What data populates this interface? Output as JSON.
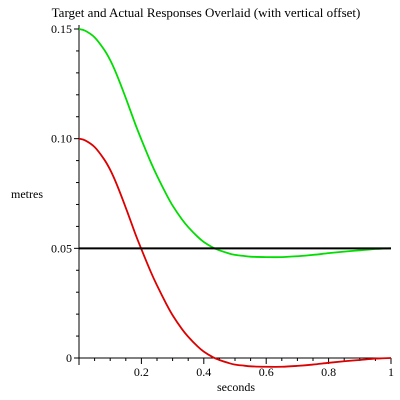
{
  "chart_data": {
    "type": "line",
    "title": "Target and Actual Responses Overlaid (with vertical offset)",
    "xlabel": "seconds",
    "ylabel": "metres",
    "xlim": [
      0,
      1
    ],
    "ylim": [
      0,
      0.15
    ],
    "grid": false,
    "xticks": [
      "0.2",
      "0.4",
      "0.6",
      "0.8",
      "1"
    ],
    "xtick_values": [
      0.2,
      0.4,
      0.6,
      0.8,
      1.0
    ],
    "yticks": [
      "0",
      "0.05",
      "0.10",
      "0.15"
    ],
    "ytick_values": [
      0,
      0.05,
      0.1,
      0.15
    ],
    "series": [
      {
        "color": "#00dd00",
        "x": [
          0,
          0.02,
          0.05,
          0.08,
          0.1,
          0.12,
          0.15,
          0.18,
          0.2,
          0.23,
          0.25,
          0.28,
          0.3,
          0.33,
          0.35,
          0.38,
          0.4,
          0.43,
          0.45,
          0.48,
          0.5,
          0.53,
          0.55,
          0.6,
          0.65,
          0.7,
          0.75,
          0.8,
          0.85,
          0.9,
          0.95,
          1.0
        ],
        "y": [
          0.15,
          0.1492,
          0.1462,
          0.1407,
          0.1358,
          0.1295,
          0.1185,
          0.1068,
          0.0996,
          0.0893,
          0.0831,
          0.0746,
          0.0695,
          0.0632,
          0.0597,
          0.0553,
          0.0529,
          0.0503,
          0.0491,
          0.0477,
          0.047,
          0.0465,
          0.0462,
          0.046,
          0.046,
          0.0464,
          0.047,
          0.0478,
          0.0485,
          0.0491,
          0.0497,
          0.05
        ]
      },
      {
        "color": "#dd0000",
        "x": [
          0,
          0.02,
          0.05,
          0.08,
          0.1,
          0.12,
          0.15,
          0.18,
          0.2,
          0.23,
          0.25,
          0.28,
          0.3,
          0.33,
          0.35,
          0.38,
          0.4,
          0.43,
          0.45,
          0.48,
          0.5,
          0.53,
          0.55,
          0.6,
          0.65,
          0.7,
          0.75,
          0.8,
          0.85,
          0.9,
          0.95,
          1.0
        ],
        "y": [
          0.1,
          0.0992,
          0.0962,
          0.0907,
          0.0858,
          0.0795,
          0.0685,
          0.0568,
          0.0496,
          0.0393,
          0.0331,
          0.0246,
          0.0195,
          0.0132,
          0.0097,
          0.0053,
          0.0029,
          0.0003,
          -0.0009,
          -0.0023,
          -0.003,
          -0.0035,
          -0.0038,
          -0.004,
          -0.004,
          -0.0036,
          -0.003,
          -0.0022,
          -0.0015,
          -0.0009,
          -0.0003,
          0.0
        ]
      },
      {
        "color": "#000000",
        "x": [
          0,
          1
        ],
        "y": [
          0.05,
          0.05
        ]
      }
    ]
  }
}
